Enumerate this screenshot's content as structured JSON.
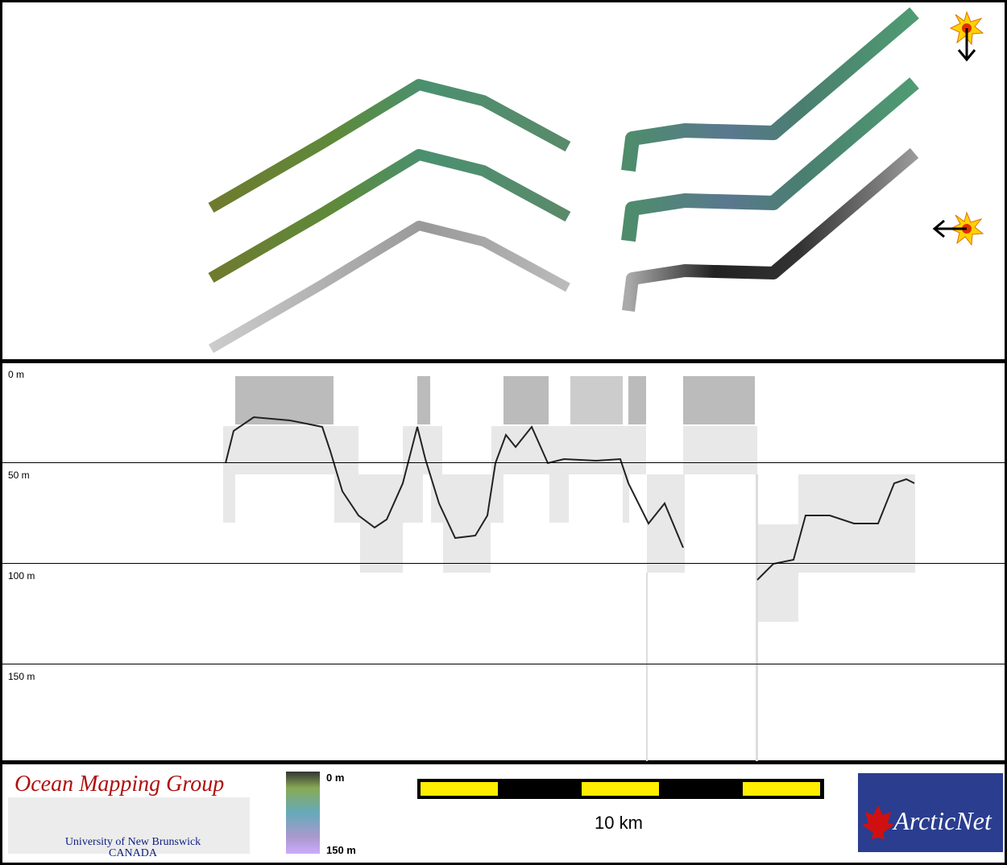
{
  "depth_axis": {
    "labels": [
      "0 m",
      "50 m",
      "100 m",
      "150 m"
    ]
  },
  "logo": {
    "title": "Ocean Mapping Group",
    "university": "University of New Brunswick",
    "country": "CANADA"
  },
  "colorbar": {
    "top_label": "0 m",
    "bottom_label": "150 m"
  },
  "scale_bar": {
    "label": "10 km"
  },
  "partner_logo": {
    "text": "ArcticNet"
  }
}
